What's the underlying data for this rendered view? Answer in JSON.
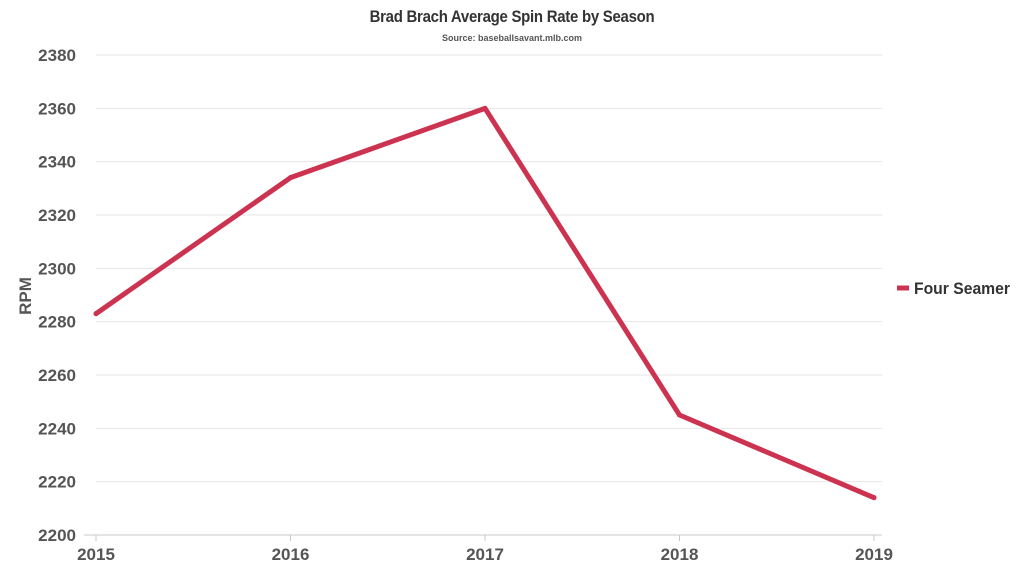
{
  "chart_data": {
    "type": "line",
    "title": "Brad Brach Average Spin Rate by Season",
    "subtitle": "Source: baseballsavant.mlb.com",
    "xlabel": "",
    "ylabel": "RPM",
    "categories": [
      "2015",
      "2016",
      "2017",
      "2018",
      "2019"
    ],
    "series": [
      {
        "name": "Four Seamer",
        "values": [
          2283,
          2334,
          2360,
          2245,
          2214
        ]
      }
    ],
    "ylim": [
      2200,
      2380
    ],
    "yticks": [
      2200,
      2220,
      2240,
      2260,
      2280,
      2300,
      2320,
      2340,
      2360,
      2380
    ],
    "grid": true,
    "legend_position": "right",
    "colors": {
      "series": "#cc3350",
      "grid": "#e6e6e6",
      "axis": "#555555",
      "text": "#555555"
    }
  }
}
